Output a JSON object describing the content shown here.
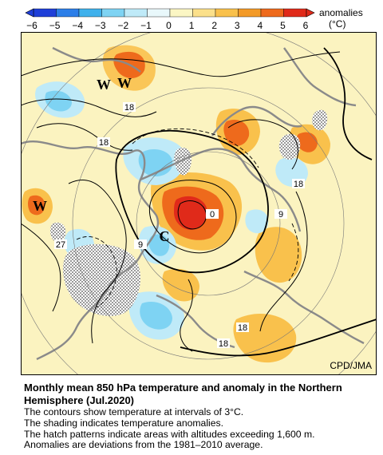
{
  "colorbar": {
    "ticks": [
      "−6",
      "−5",
      "−4",
      "−3",
      "−2",
      "−1",
      "0",
      "1",
      "2",
      "3",
      "4",
      "5",
      "6"
    ],
    "label": "anomalies",
    "unit": "(°C)",
    "colors": [
      "#1f3fd8",
      "#2c7ee8",
      "#3fb1ec",
      "#7ed3f3",
      "#bfeaf8",
      "#e9f8fb",
      "#fbf6c4",
      "#fbe08a",
      "#f9c14c",
      "#f39a28",
      "#ee6a1c",
      "#e02a1a"
    ]
  },
  "map": {
    "contour_labels": [
      "18",
      "18",
      "18",
      "27",
      "0",
      "9",
      "9",
      "18",
      "18"
    ],
    "pressure_symbols": [
      "W",
      "W",
      "W",
      "C"
    ],
    "credit": "CPD/JMA",
    "colors": {
      "background": "#fbf3c0",
      "warm": "#f9c14c",
      "hot": "#ee6a1c",
      "hottest": "#e02a1a",
      "cool": "#bfeaf8",
      "cold": "#7ed3f3",
      "coast": "#8a8a8a",
      "hatch": "#9a9a9a"
    }
  },
  "caption": {
    "title_line1": "Monthly mean 850 hPa temperature and anomaly in the Northern",
    "title_line2": "Hemisphere (Jul.2020)",
    "lines": [
      "The contours show temperature at intervals of 3°C.",
      "The shading indicates temperature anomalies.",
      "The hatch patterns indicate areas with altitudes exceeding 1,600 m.",
      "Anomalies are deviations from the 1981–2010 average."
    ]
  }
}
